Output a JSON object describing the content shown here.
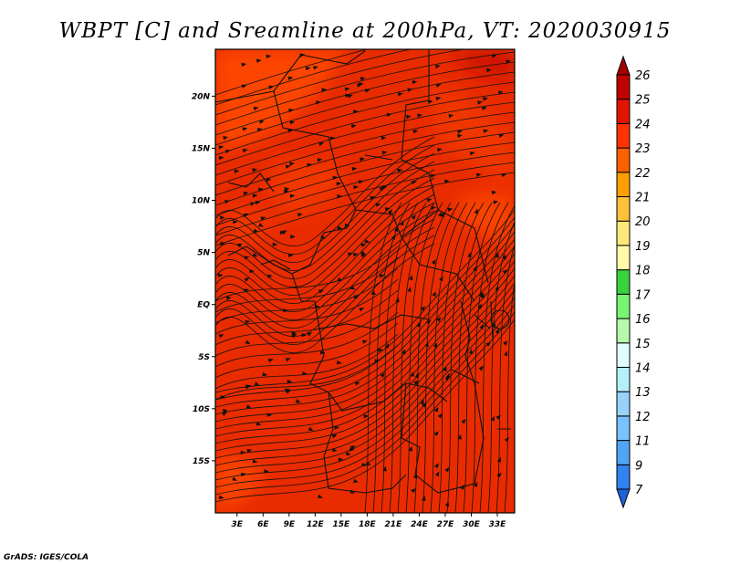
{
  "title": "WBPT [C] and Sreamline at 200hPa, VT: 2020030915",
  "credit": "GrADS: IGES/COLA",
  "chart_data": {
    "type": "heatmap",
    "title": "WBPT [C] and Sreamline at 200hPa, VT: 2020030915",
    "variable": "Wet-bulb potential temperature (C) with 200hPa streamlines",
    "x_ticks": [
      "3E",
      "6E",
      "9E",
      "12E",
      "15E",
      "18E",
      "21E",
      "24E",
      "27E",
      "30E",
      "33E"
    ],
    "x_tick_values": [
      3,
      6,
      9,
      12,
      15,
      18,
      21,
      24,
      27,
      30,
      33
    ],
    "y_ticks": [
      "20N",
      "15N",
      "10N",
      "5N",
      "EQ",
      "5S",
      "10S",
      "15S"
    ],
    "y_tick_values": [
      20,
      15,
      10,
      5,
      0,
      -5,
      -10,
      -15
    ],
    "xlim": [
      0.5,
      35
    ],
    "ylim": [
      -20,
      24.5
    ],
    "colorbar": {
      "labels": [
        "7",
        "9",
        "11",
        "12",
        "13",
        "14",
        "15",
        "16",
        "17",
        "18",
        "19",
        "20",
        "21",
        "22",
        "23",
        "24",
        "25",
        "26"
      ],
      "colors": [
        "#1e64dc",
        "#3282f0",
        "#50a5f5",
        "#78c3ff",
        "#96d2fa",
        "#b4f0fa",
        "#e1ffff",
        "#b4faaa",
        "#78f573",
        "#37d23c",
        "#fffaaa",
        "#ffe878",
        "#ffc03c",
        "#ffa000",
        "#ff6000",
        "#ff3200",
        "#e11400",
        "#c00000",
        "#a50000"
      ]
    },
    "field_summary": {
      "dominant_range": [
        24,
        25
      ],
      "warm_patches_23_24": [
        "northwest",
        "north-central",
        "east-central",
        "far southwest"
      ],
      "darkest_25_plus": [
        "northeast corner"
      ]
    }
  }
}
